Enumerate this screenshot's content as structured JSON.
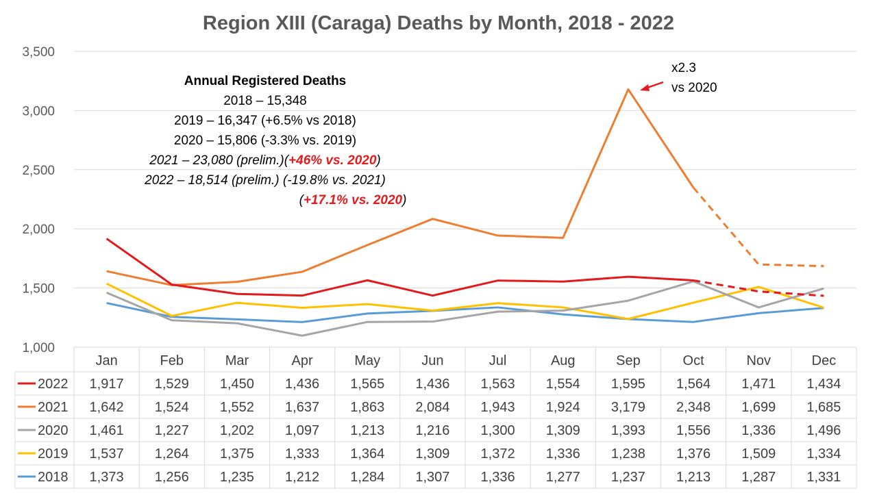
{
  "chart_data": {
    "type": "line",
    "title": "Region XIII (Caraga) Deaths by Month, 2018 - 2022",
    "categories": [
      "Jan",
      "Feb",
      "Mar",
      "Apr",
      "May",
      "Jun",
      "Jul",
      "Aug",
      "Sep",
      "Oct",
      "Nov",
      "Dec"
    ],
    "ylim": [
      1000,
      3500
    ],
    "yticks": [
      "1,000",
      "1,500",
      "2,000",
      "2,500",
      "3,000",
      "3,500"
    ],
    "grid": true,
    "legend": "data-table",
    "series": [
      {
        "name": "2022",
        "color": "#e31a1c",
        "values": [
          1917,
          1529,
          1450,
          1436,
          1565,
          1436,
          1563,
          1554,
          1595,
          1564,
          1471,
          1434
        ],
        "labels": [
          "1,917",
          "1,529",
          "1,450",
          "1,436",
          "1,565",
          "1,436",
          "1,563",
          "1,554",
          "1,595",
          "1,564",
          "1,471",
          "1,434"
        ],
        "dashed_from_index": 9
      },
      {
        "name": "2021",
        "color": "#ed7d31",
        "values": [
          1642,
          1524,
          1552,
          1637,
          1863,
          2084,
          1943,
          1924,
          3179,
          2348,
          1699,
          1685
        ],
        "labels": [
          "1,642",
          "1,524",
          "1,552",
          "1,637",
          "1,863",
          "2,084",
          "1,943",
          "1,924",
          "3,179",
          "2,348",
          "1,699",
          "1,685"
        ],
        "dashed_from_index": 9
      },
      {
        "name": "2020",
        "color": "#a5a5a5",
        "values": [
          1461,
          1227,
          1202,
          1097,
          1213,
          1216,
          1300,
          1309,
          1393,
          1556,
          1336,
          1496
        ],
        "labels": [
          "1,461",
          "1,227",
          "1,202",
          "1,097",
          "1,213",
          "1,216",
          "1,300",
          "1,309",
          "1,393",
          "1,556",
          "1,336",
          "1,496"
        ]
      },
      {
        "name": "2019",
        "color": "#ffc000",
        "values": [
          1537,
          1264,
          1375,
          1333,
          1364,
          1309,
          1372,
          1336,
          1238,
          1376,
          1509,
          1334
        ],
        "labels": [
          "1,537",
          "1,264",
          "1,375",
          "1,333",
          "1,364",
          "1,309",
          "1,372",
          "1,336",
          "1,238",
          "1,376",
          "1,509",
          "1,334"
        ]
      },
      {
        "name": "2018",
        "color": "#5b9bd5",
        "values": [
          1373,
          1256,
          1235,
          1212,
          1284,
          1307,
          1336,
          1277,
          1237,
          1213,
          1287,
          1331
        ],
        "labels": [
          "1,373",
          "1,256",
          "1,235",
          "1,212",
          "1,284",
          "1,307",
          "1,336",
          "1,277",
          "1,237",
          "1,213",
          "1,287",
          "1,331"
        ]
      }
    ],
    "annotations": {
      "box_title": "Annual Registered Deaths",
      "l2018": "2018 – 15,348",
      "l2019": "2019 – 16,347 (+6.5% vs 2018)",
      "l2020": "2020 – 15,806 (-3.3% vs. 2019)",
      "l2021a": "2021 – 23,080 (prelim.)(",
      "l2021b": "+46% vs. 2020",
      "l2021c": ")",
      "l2022": "2022 – 18,514 (prelim.) (-19.8% vs. 2021)",
      "l2022b_open": "(",
      "l2022b": "+17.1% vs. 2020",
      "l2022b_close": ")",
      "peak_line1": "x2.3",
      "peak_line2": "vs 2020",
      "highlight_color": "#e31a1c"
    }
  }
}
